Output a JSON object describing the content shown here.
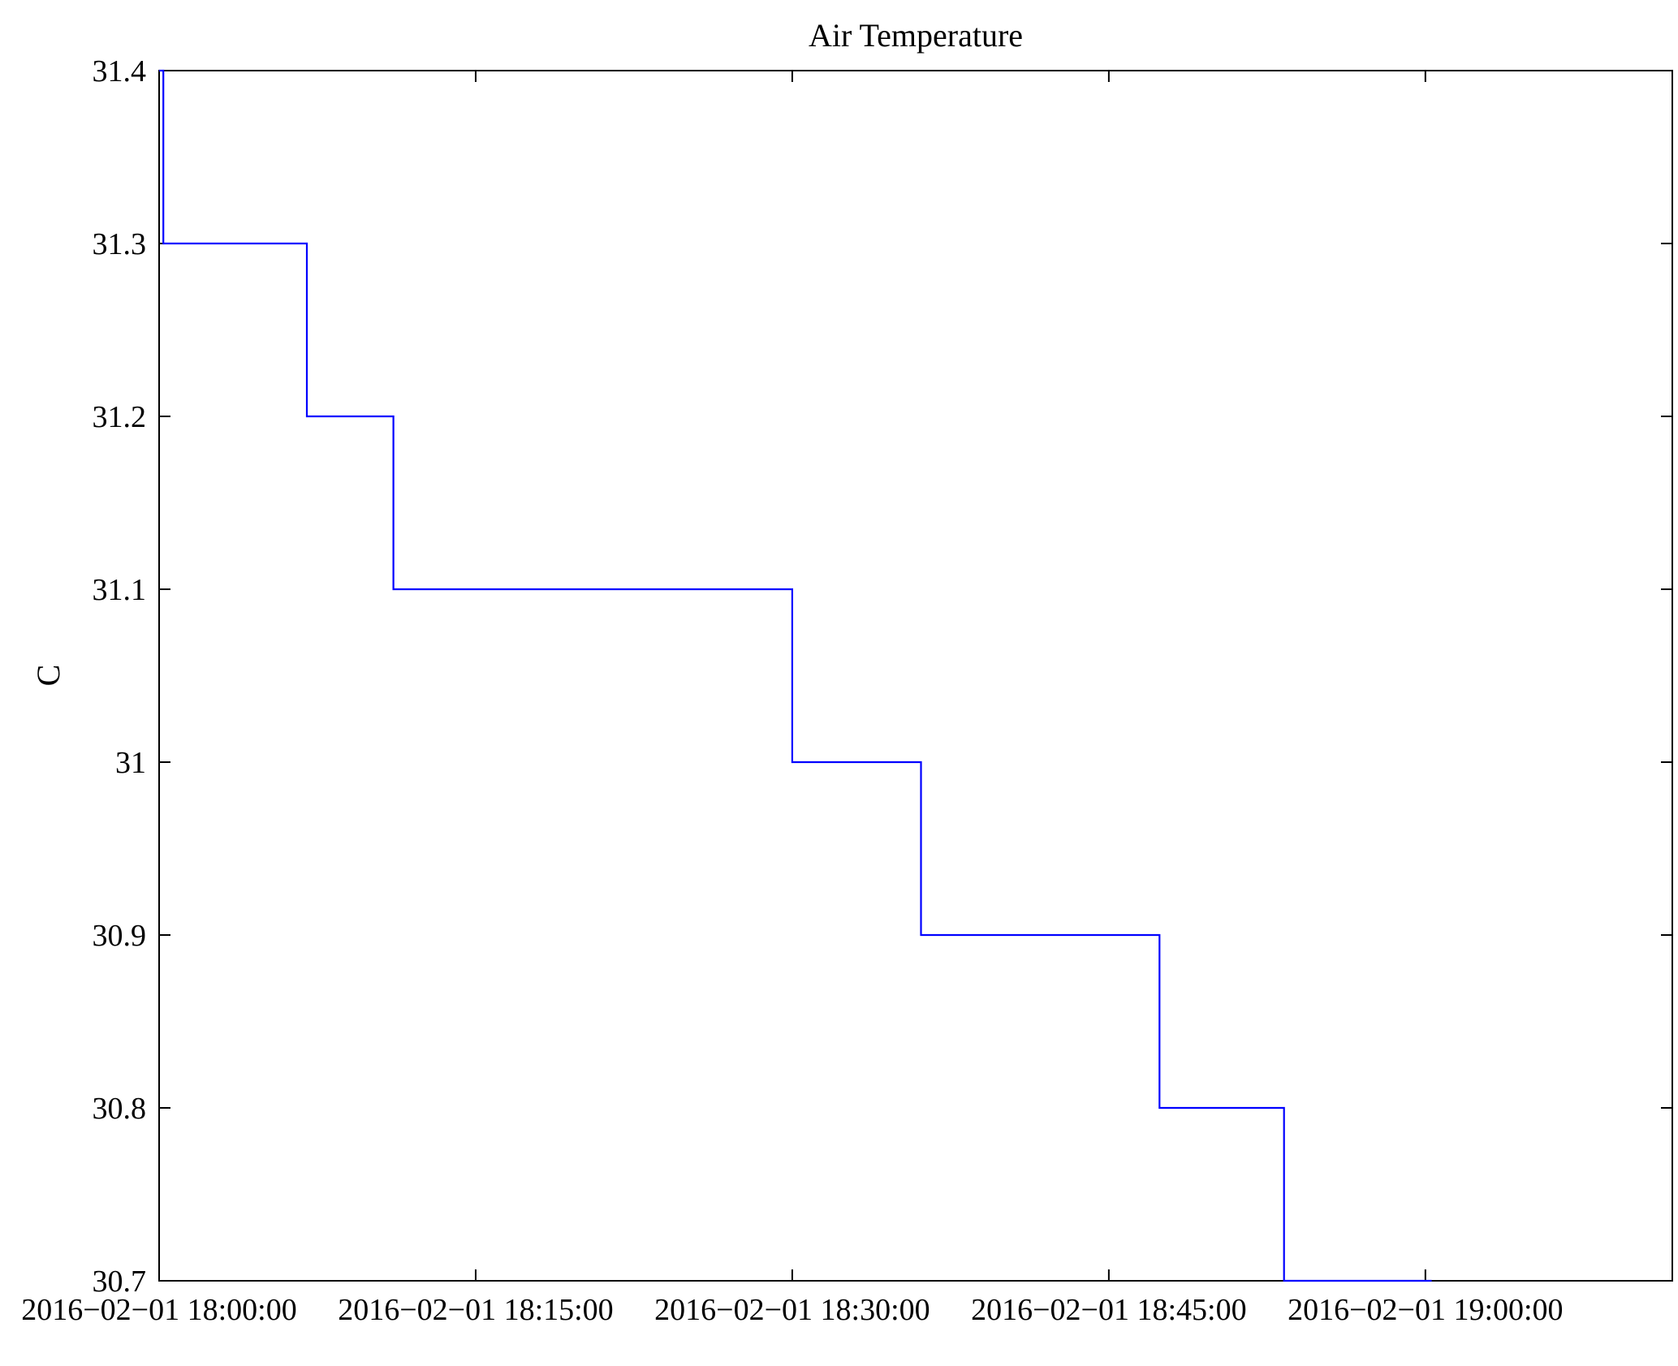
{
  "title": "Air Temperature",
  "ylabel": "C",
  "chart_data": {
    "type": "line",
    "subtype": "step",
    "title": "Air Temperature",
    "xlabel": "",
    "ylabel": "C",
    "legend": "none",
    "grid": false,
    "line_color": "#0000ff",
    "axis_color": "#000000",
    "background": "#ffffff",
    "xlim_minutes": [
      0,
      71.7
    ],
    "ylim": [
      30.7,
      31.4
    ],
    "x_unit": "minutes after 2016-02-01 18:00:00",
    "x_ticks": [
      {
        "pos": 0,
        "label": "2016−02−01 18:00:00"
      },
      {
        "pos": 15,
        "label": "2016−02−01 18:15:00"
      },
      {
        "pos": 30,
        "label": "2016−02−01 18:30:00"
      },
      {
        "pos": 45,
        "label": "2016−02−01 18:45:00"
      },
      {
        "pos": 60,
        "label": "2016−02−01 19:00:00"
      }
    ],
    "y_ticks": [
      {
        "pos": 31.4,
        "label": "31.4"
      },
      {
        "pos": 31.3,
        "label": "31.3"
      },
      {
        "pos": 31.2,
        "label": "31.2"
      },
      {
        "pos": 31.1,
        "label": "31.1"
      },
      {
        "pos": 31.0,
        "label": "31"
      },
      {
        "pos": 30.9,
        "label": "30.9"
      },
      {
        "pos": 30.8,
        "label": "30.8"
      },
      {
        "pos": 30.7,
        "label": "30.7"
      }
    ],
    "series": [
      {
        "name": "Air Temperature (C)",
        "points": [
          [
            0.0,
            31.4
          ],
          [
            0.2,
            31.4
          ],
          [
            0.2,
            31.3
          ],
          [
            7.0,
            31.3
          ],
          [
            7.0,
            31.2
          ],
          [
            11.1,
            31.2
          ],
          [
            11.1,
            31.1
          ],
          [
            30.0,
            31.1
          ],
          [
            30.0,
            31.0
          ],
          [
            36.1,
            31.0
          ],
          [
            36.1,
            30.9
          ],
          [
            47.4,
            30.9
          ],
          [
            47.4,
            30.8
          ],
          [
            53.3,
            30.8
          ],
          [
            53.3,
            30.7
          ],
          [
            60.3,
            30.7
          ]
        ]
      }
    ]
  }
}
